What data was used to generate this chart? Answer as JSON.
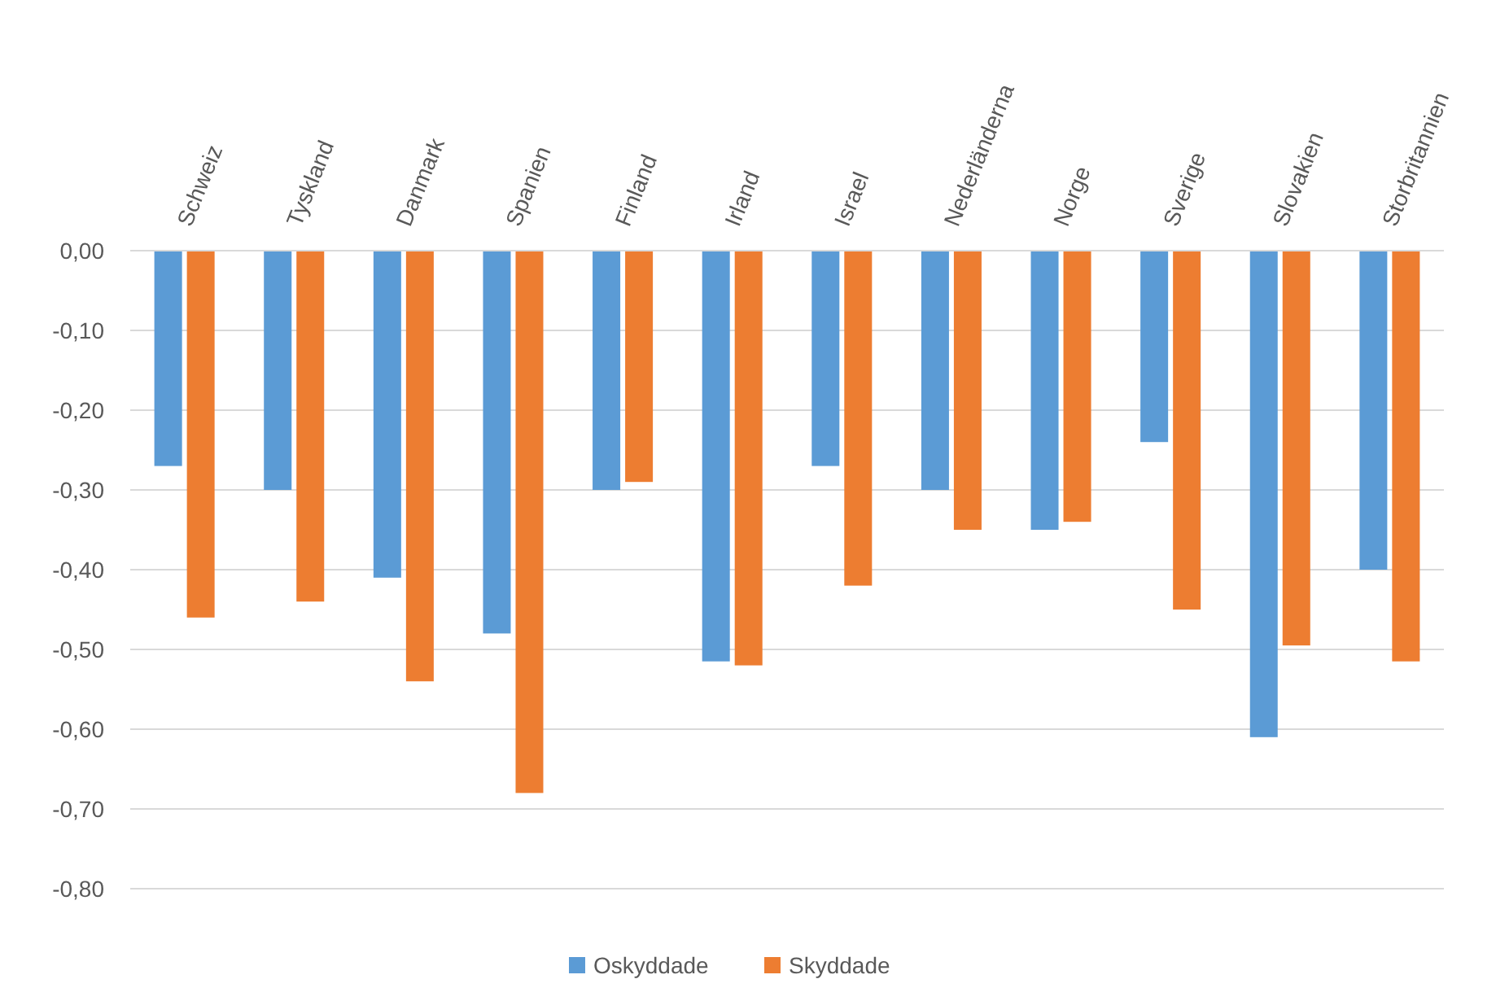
{
  "chart_data": {
    "type": "bar",
    "categories": [
      "Schweiz",
      "Tyskland",
      "Danmark",
      "Spanien",
      "Finland",
      "Irland",
      "Israel",
      "Nederländerna",
      "Norge",
      "Sverige",
      "Slovakien",
      "Storbritannien"
    ],
    "series": [
      {
        "name": "Oskyddade",
        "color": "#5b9bd5",
        "values": [
          -0.27,
          -0.3,
          -0.41,
          -0.48,
          -0.3,
          -0.515,
          -0.27,
          -0.3,
          -0.35,
          -0.24,
          -0.61,
          -0.4
        ]
      },
      {
        "name": "Skyddade",
        "color": "#ed7d31",
        "values": [
          -0.46,
          -0.44,
          -0.54,
          -0.68,
          -0.29,
          -0.52,
          -0.42,
          -0.35,
          -0.34,
          -0.45,
          -0.495,
          -0.515
        ]
      }
    ],
    "ylim": [
      -0.8,
      0
    ],
    "yticks": [
      {
        "value": 0,
        "label": "0,00"
      },
      {
        "value": -0.1,
        "label": "-0,10"
      },
      {
        "value": -0.2,
        "label": "-0,20"
      },
      {
        "value": -0.3,
        "label": "-0,30"
      },
      {
        "value": -0.4,
        "label": "-0,40"
      },
      {
        "value": -0.5,
        "label": "-0,50"
      },
      {
        "value": -0.6,
        "label": "-0,60"
      },
      {
        "value": -0.7,
        "label": "-0,70"
      },
      {
        "value": -0.8,
        "label": "-0,80"
      }
    ],
    "grid": "y",
    "legend": "bottom"
  }
}
